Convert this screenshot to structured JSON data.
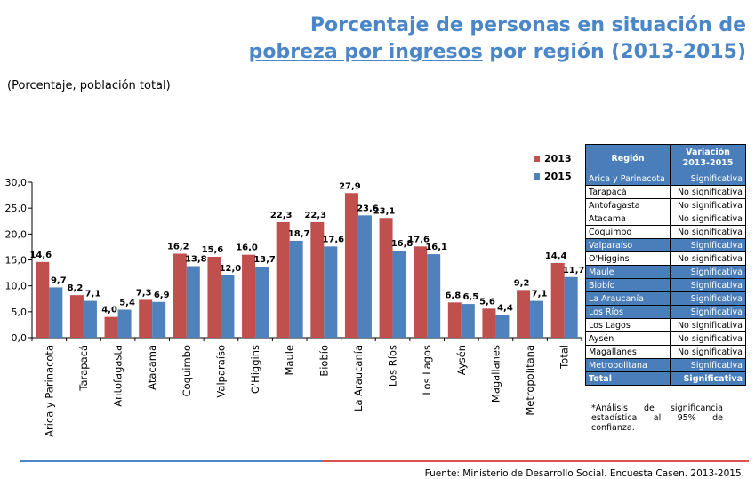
{
  "header": {
    "title_line1": "Porcentaje de personas en situación de",
    "title_line2_underlined": "pobreza por ingresos",
    "title_line2_rest": " por región (2013-2015)",
    "subtitle": "(Porcentaje, población total)"
  },
  "chart_data": {
    "type": "bar",
    "ylim": [
      0,
      30
    ],
    "yticks": [
      "0,0",
      "5,0",
      "10,0",
      "15,0",
      "20,0",
      "25,0",
      "30,0"
    ],
    "grid": false,
    "legend_position": "top-right",
    "categories": [
      "Arica y Parinacota",
      "Tarapacá",
      "Antofagasta",
      "Atacama",
      "Coquimbo",
      "Valparaíso",
      "O'Higgins",
      "Maule",
      "Biobío",
      "La Araucanía",
      "Los Ríos",
      "Los Lagos",
      "Aysén",
      "Magallanes",
      "Metropolitana",
      "Total"
    ],
    "series": [
      {
        "name": "2013",
        "color": "#c0504d",
        "values": [
          14.6,
          8.2,
          4.0,
          7.3,
          16.2,
          15.6,
          16.0,
          22.3,
          22.3,
          27.9,
          23.1,
          17.6,
          6.8,
          5.6,
          9.2,
          14.4
        ],
        "labels": [
          "14,6",
          "8,2",
          "4,0",
          "7,3",
          "16,2",
          "15,6",
          "16,0",
          "22,3",
          "22,3",
          "27,9",
          "23,1",
          "17,6",
          "6,8",
          "5,6",
          "9,2",
          "14,4"
        ]
      },
      {
        "name": "2015",
        "color": "#4f81bd",
        "values": [
          9.7,
          7.1,
          5.4,
          6.9,
          13.8,
          12.0,
          13.7,
          18.7,
          17.6,
          23.6,
          16.8,
          16.1,
          6.5,
          4.4,
          7.1,
          11.7
        ],
        "labels": [
          "9,7",
          "7,1",
          "5,4",
          "6,9",
          "13,8",
          "12,0",
          "13,7",
          "18,7",
          "17,6",
          "23,6",
          "16,8",
          "16,1",
          "6,5",
          "4,4",
          "7,1",
          "11,7"
        ]
      }
    ]
  },
  "table": {
    "header_region": "Región",
    "header_variation": "Variación 2013-2015",
    "rows": [
      {
        "region": "Arica y Parinacota",
        "variation": "Significativa",
        "significant": true
      },
      {
        "region": "Tarapacá",
        "variation": "No significativa",
        "significant": false
      },
      {
        "region": "Antofagasta",
        "variation": "No significativa",
        "significant": false
      },
      {
        "region": "Atacama",
        "variation": "No significativa",
        "significant": false
      },
      {
        "region": "Coquimbo",
        "variation": "No significativa",
        "significant": false
      },
      {
        "region": "Valparaíso",
        "variation": "Significativa",
        "significant": true
      },
      {
        "region": "O'Higgins",
        "variation": "No significativa",
        "significant": false
      },
      {
        "region": "Maule",
        "variation": "Significativa",
        "significant": true
      },
      {
        "region": "Biobío",
        "variation": "Significativa",
        "significant": true
      },
      {
        "region": "La Araucanía",
        "variation": "Significativa",
        "significant": true
      },
      {
        "region": "Los Ríos",
        "variation": "Significativa",
        "significant": true
      },
      {
        "region": "Los Lagos",
        "variation": "No significativa",
        "significant": false
      },
      {
        "region": "Aysén",
        "variation": "No significativa",
        "significant": false
      },
      {
        "region": "Magallanes",
        "variation": "No significativa",
        "significant": false
      },
      {
        "region": "Metropolitana",
        "variation": "Significativa",
        "significant": true
      }
    ],
    "total": {
      "region": "Total",
      "variation": "Significativa",
      "significant": true
    }
  },
  "note": "*Análisis de significancia estadística al 95% de confianza.",
  "source": "Fuente: Ministerio de Desarrollo Social. Encuesta Casen. 2013-2015.",
  "colors": {
    "title": "#4a86c8",
    "bar2013": "#c0504d",
    "bar2015": "#4f81bd",
    "table_sig": "#4a7ebb",
    "line_left": "#4a86c8",
    "line_right": "#d9534f"
  }
}
